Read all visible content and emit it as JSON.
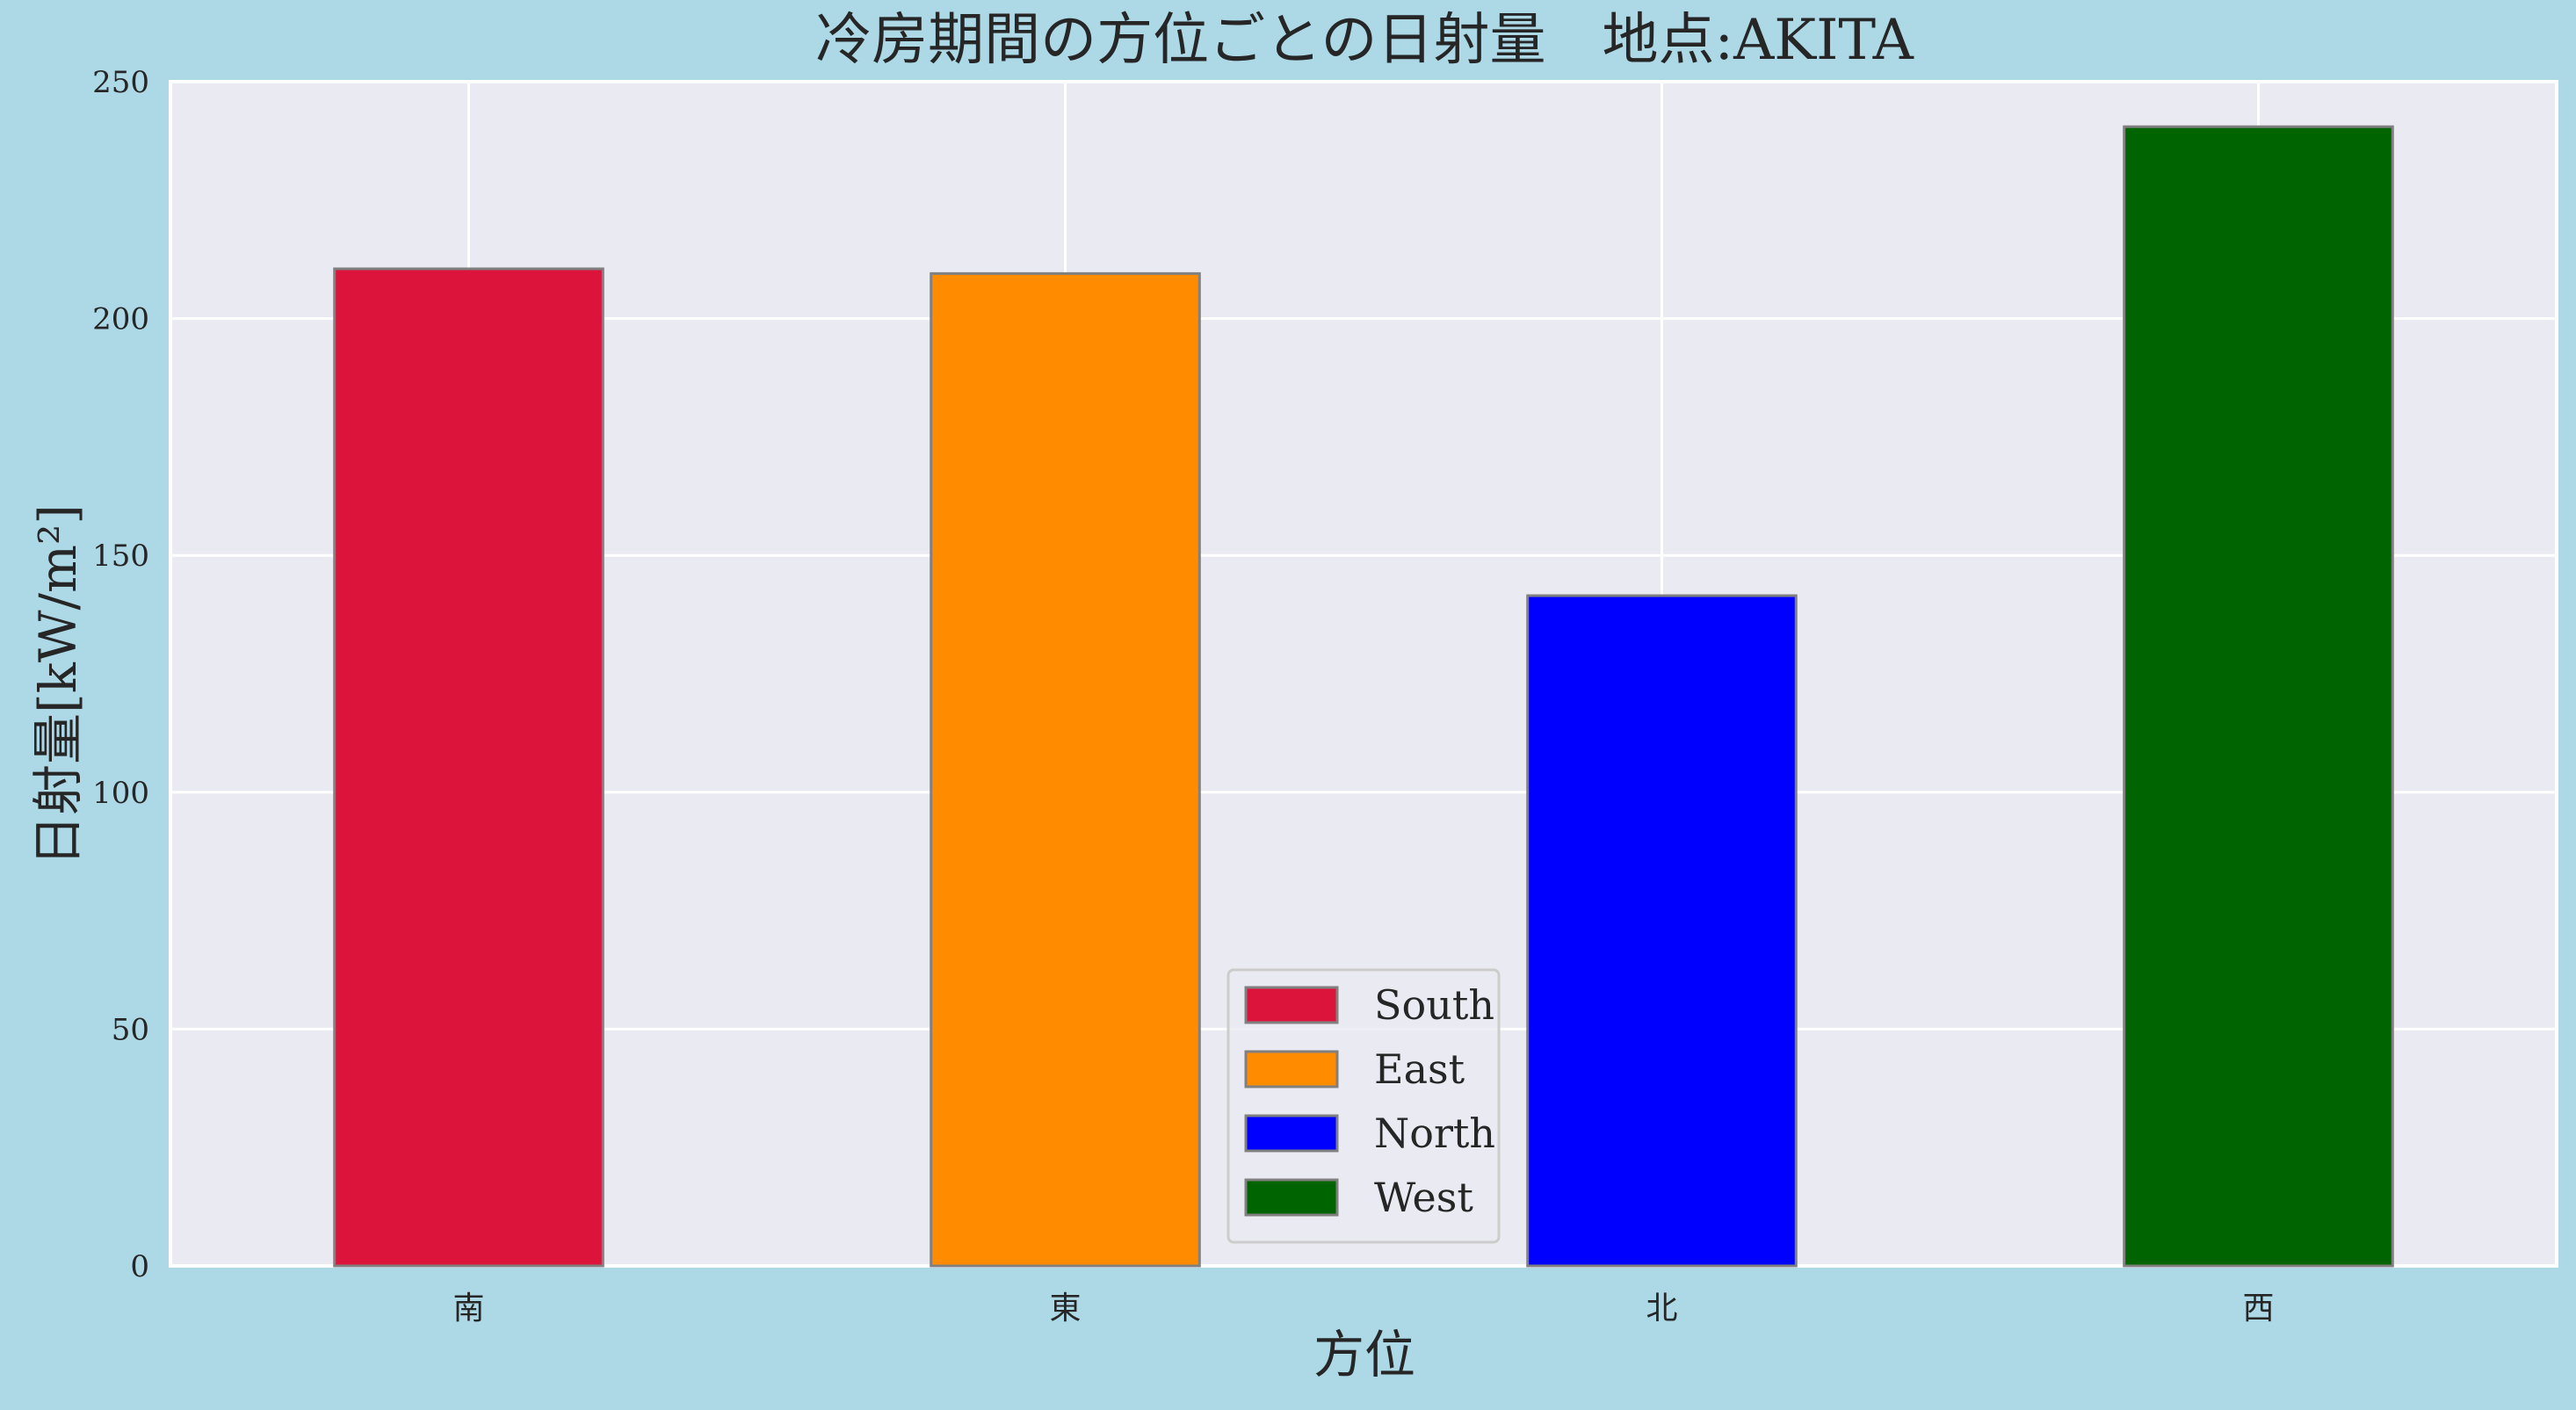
{
  "chart_data": {
    "type": "bar",
    "title": "冷房期間の方位ごとの日射量　地点:AKITA",
    "xlabel": "方位",
    "ylabel": "日射量[kW/m²]",
    "categories": [
      "南",
      "東",
      "北",
      "西"
    ],
    "values": [
      210.5,
      209.5,
      141.5,
      240.5
    ],
    "colors": [
      "#dc143c",
      "#ff8c00",
      "#0000ff",
      "#006400"
    ],
    "legend": [
      "South",
      "East",
      "North",
      "West"
    ],
    "legend_position": "bottom-center",
    "ylim": [
      0,
      250
    ],
    "yticks": [
      0,
      50,
      100,
      150,
      200,
      250
    ],
    "grid": true,
    "background": "#add8e6",
    "plot_background": "#eaeaf2"
  }
}
